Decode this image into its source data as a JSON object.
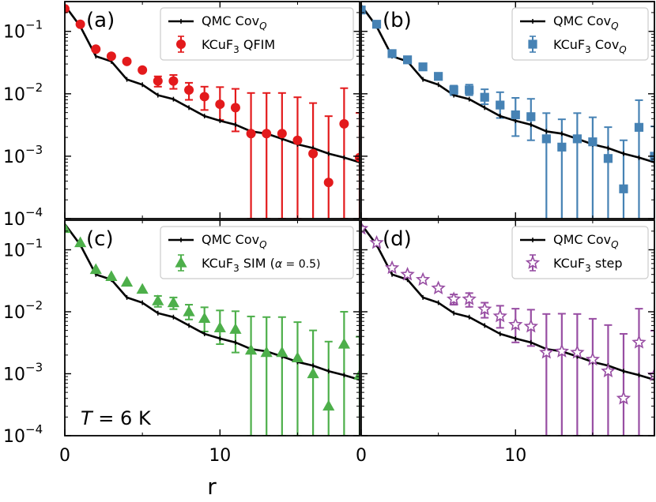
{
  "chart_data": {
    "type": "scatter",
    "layout": "2x2 grid of log-scale panels with shared axes",
    "xlabel": "r",
    "xlim": [
      0,
      19
    ],
    "x_ticks": [
      0,
      10
    ],
    "yscale": "log",
    "ylim": [
      0.0001,
      0.3
    ],
    "y_tick_labels": [
      {
        "base": "10",
        "exp": "−1",
        "value": 0.1
      },
      {
        "base": "10",
        "exp": "−2",
        "value": 0.01
      },
      {
        "base": "10",
        "exp": "−3",
        "value": 0.001
      },
      {
        "base": "10",
        "exp": "−4",
        "value": 0.0001
      }
    ],
    "annotation": {
      "text_italic": "T",
      "text_rest": " = 6 K",
      "panel": "c"
    },
    "qmc_line": {
      "legend": {
        "main": "QMC Cov",
        "sub": "Q"
      },
      "x": [
        0,
        1,
        2,
        3,
        4,
        5,
        6,
        7,
        8,
        9,
        10,
        11,
        12,
        13,
        14,
        15,
        16,
        17,
        18,
        19
      ],
      "y": [
        0.26,
        0.12,
        0.04,
        0.033,
        0.017,
        0.014,
        0.0095,
        0.0082,
        0.006,
        0.0044,
        0.0037,
        0.0032,
        0.0025,
        0.0023,
        0.0019,
        0.00155,
        0.00135,
        0.0011,
        0.00095,
        0.0008
      ]
    },
    "panels": [
      {
        "label": "(a)",
        "marker": "circle",
        "color": "#e31a1c",
        "legend": {
          "main": "KCuF",
          "sub": "3",
          "rest": " QFIM"
        },
        "x": [
          0,
          1,
          2,
          3,
          4,
          5,
          6,
          7,
          8,
          9,
          10,
          11,
          12,
          13,
          14,
          15,
          16,
          17,
          18,
          19
        ],
        "y": [
          0.23,
          0.13,
          0.052,
          0.04,
          0.033,
          0.024,
          0.016,
          0.016,
          0.0115,
          0.009,
          0.0068,
          0.006,
          0.0023,
          0.0023,
          0.0023,
          0.0018,
          0.0011,
          0.00038,
          0.0033,
          0.00095
        ],
        "err_low": [
          0,
          0,
          0,
          0,
          0,
          0,
          0.003,
          0.004,
          0.0035,
          0.0035,
          0.003,
          0.0035,
          0.0022,
          0.0022,
          0.0022,
          0.0017,
          0.00105,
          0.00036,
          0.0032,
          0.0009
        ],
        "err_high": [
          0,
          0,
          0,
          0,
          0,
          0,
          0.003,
          0.004,
          0.0035,
          0.004,
          0.006,
          0.006,
          0.008,
          0.008,
          0.008,
          0.007,
          0.006,
          0.004,
          0.009,
          0.004
        ]
      },
      {
        "label": "(b)",
        "marker": "square",
        "color": "#4682b4",
        "legend": {
          "main": "KCuF",
          "sub": "3",
          "rest": " Cov",
          "rest_sub": "Q"
        },
        "x": [
          0,
          1,
          2,
          3,
          4,
          5,
          6,
          7,
          8,
          9,
          10,
          11,
          12,
          13,
          14,
          15,
          16,
          17,
          18,
          19
        ],
        "y": [
          0.22,
          0.13,
          0.044,
          0.035,
          0.027,
          0.019,
          0.0115,
          0.0115,
          0.0088,
          0.0066,
          0.0046,
          0.0043,
          0.0019,
          0.0014,
          0.0019,
          0.0017,
          0.00092,
          0.0003,
          0.0029,
          0.001
        ],
        "err_low": [
          0,
          0,
          0,
          0,
          0,
          0,
          0.002,
          0.002,
          0.002,
          0.0025,
          0.0025,
          0.0025,
          0.00185,
          0.00135,
          0.00185,
          0.00165,
          0.0009,
          0.00029,
          0.00285,
          0.00098
        ],
        "err_high": [
          0,
          0,
          0,
          0,
          0,
          0,
          0.002,
          0.0025,
          0.003,
          0.004,
          0.004,
          0.004,
          0.003,
          0.0025,
          0.003,
          0.0025,
          0.002,
          0.0015,
          0.005,
          0.002
        ]
      },
      {
        "label": "(c)",
        "marker": "triangle",
        "color": "#4daf4a",
        "legend": {
          "main": "KCuF",
          "sub": "3",
          "rest": " SIM (",
          "alpha": "α",
          "alpha_rest": " = 0.5)"
        },
        "x": [
          0,
          1,
          2,
          3,
          4,
          5,
          6,
          7,
          8,
          9,
          10,
          11,
          12,
          13,
          14,
          15,
          16,
          17,
          18,
          19
        ],
        "y": [
          0.22,
          0.13,
          0.048,
          0.037,
          0.03,
          0.023,
          0.015,
          0.014,
          0.01,
          0.0078,
          0.0055,
          0.0052,
          0.0024,
          0.0022,
          0.0022,
          0.0018,
          0.001,
          0.0003,
          0.003,
          0.00095
        ],
        "err_low": [
          0,
          0,
          0,
          0,
          0,
          0,
          0.003,
          0.003,
          0.0025,
          0.003,
          0.0025,
          0.003,
          0.0023,
          0.0021,
          0.0021,
          0.0017,
          0.00095,
          0.00029,
          0.0029,
          0.0009
        ],
        "err_high": [
          0,
          0,
          0,
          0,
          0,
          0,
          0.003,
          0.003,
          0.003,
          0.004,
          0.005,
          0.005,
          0.006,
          0.006,
          0.006,
          0.005,
          0.004,
          0.003,
          0.007,
          0.003
        ]
      },
      {
        "label": "(d)",
        "marker": "star",
        "color": "#984ea3",
        "legend": {
          "main": "KCuF",
          "sub": "3",
          "rest": " step"
        },
        "x": [
          0,
          1,
          2,
          3,
          4,
          5,
          6,
          7,
          8,
          9,
          10,
          11,
          12,
          13,
          14,
          15,
          16,
          17,
          18,
          19
        ],
        "y": [
          0.22,
          0.13,
          0.051,
          0.04,
          0.033,
          0.024,
          0.016,
          0.016,
          0.011,
          0.0085,
          0.0062,
          0.0058,
          0.0022,
          0.0023,
          0.0022,
          0.0017,
          0.0011,
          0.0004,
          0.0032,
          0.00095
        ],
        "err_low": [
          0,
          0,
          0,
          0,
          0,
          0,
          0.003,
          0.004,
          0.003,
          0.003,
          0.003,
          0.003,
          0.0021,
          0.0022,
          0.0021,
          0.0016,
          0.00105,
          0.00039,
          0.0031,
          0.0009
        ],
        "err_high": [
          0,
          0,
          0,
          0,
          0,
          0,
          0.003,
          0.004,
          0.003,
          0.004,
          0.005,
          0.005,
          0.007,
          0.007,
          0.007,
          0.006,
          0.005,
          0.004,
          0.008,
          0.004
        ]
      }
    ]
  }
}
